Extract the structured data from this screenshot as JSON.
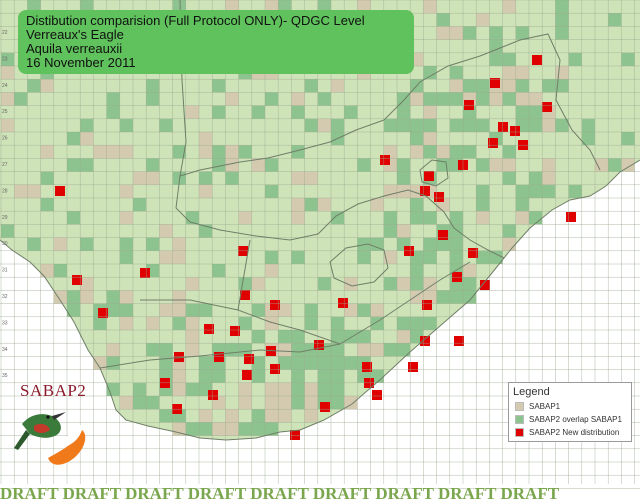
{
  "title": {
    "line1": "Distibution comparision (Full Protocol ONLY)- QDGC Level",
    "line2": "Verreaux's Eagle",
    "line3": "Aquila verreauxii",
    "line4": "16 November 2011"
  },
  "legend": {
    "title": "Legend",
    "items": [
      {
        "label": "SABAP1",
        "color": "#d4cab0"
      },
      {
        "label": "SABAP2 overlap SABAP1",
        "color": "#8dc38e"
      },
      {
        "label": "SABAP2 New distribution",
        "color": "#e00000"
      }
    ]
  },
  "brand": {
    "label": "SABAP2"
  },
  "watermark": {
    "text": "DRAFT",
    "color": "#7aa64d"
  },
  "colors": {
    "land": "#cfe3b8",
    "outside": "#ffffff",
    "grid_line": "#9aa890",
    "sabap1": "#d4cab0",
    "overlap": "#8dc38e",
    "new": "#e00000",
    "border": "#8a9a80"
  },
  "axis_labels": [
    "22",
    "23",
    "24",
    "25",
    "26",
    "27",
    "28",
    "29",
    "30",
    "31",
    "32",
    "33",
    "34",
    "35"
  ]
}
